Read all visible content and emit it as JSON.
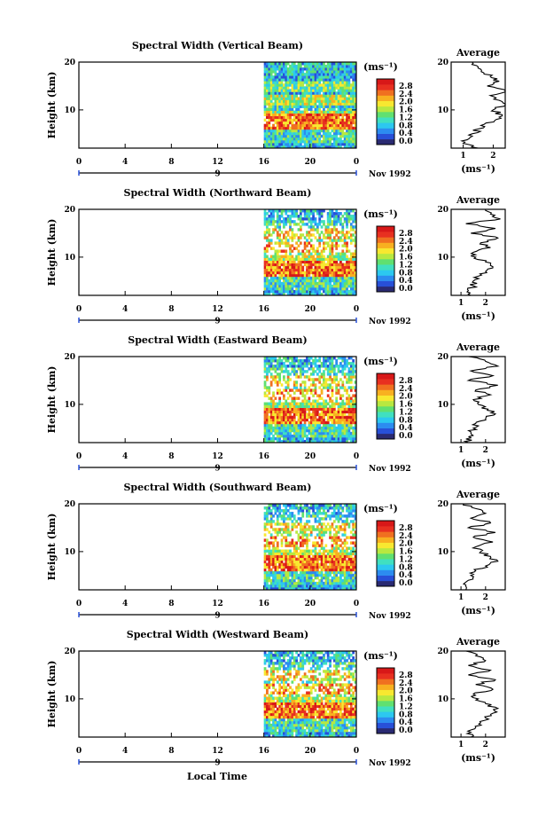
{
  "figure": {
    "x_axis_label": "Local Time",
    "date_label": "Nov 1992",
    "average_title": "Average",
    "unit_label": "(ms⁻¹)",
    "y_axis_label": "Height (km)",
    "colors": {
      "scale": [
        "#2a2a72",
        "#2850d8",
        "#2c8cf0",
        "#2cc8f0",
        "#40e0c0",
        "#60e070",
        "#b8e840",
        "#f8e830",
        "#f8b020",
        "#f07020",
        "#e83020",
        "#d81818"
      ]
    }
  },
  "chart_data": [
    {
      "type": "heatmap",
      "title": "Spectral Width (Vertical Beam)",
      "beam": "vertical",
      "x_ticks": [
        "0",
        "4",
        "8",
        "12",
        "16",
        "20",
        "0"
      ],
      "x_range": [
        0,
        24
      ],
      "day_label": "9",
      "data_start_hour": 16,
      "y_ticks": [
        "20",
        "10"
      ],
      "y_range": [
        2,
        20
      ],
      "colorbar_ticks": [
        "2.8",
        "2.4",
        "2.0",
        "1.6",
        "1.2",
        "0.8",
        "0.4",
        "0.0"
      ],
      "average": {
        "x_ticks": [
          "1",
          "2"
        ],
        "x_range": [
          0.6,
          2.4
        ],
        "height_km": [
          2,
          3,
          4,
          5,
          6,
          7,
          8,
          9,
          10,
          11,
          12,
          13,
          14,
          15,
          16,
          17,
          18,
          19,
          20
        ],
        "width": [
          1.5,
          1.0,
          1.2,
          1.3,
          1.5,
          1.7,
          2.1,
          2.3,
          2.0,
          2.4,
          2.2,
          1.9,
          2.5,
          1.8,
          2.2,
          1.9,
          1.6,
          1.5,
          1.3
        ]
      }
    },
    {
      "type": "heatmap",
      "title": "Spectral Width (Northward Beam)",
      "beam": "northward",
      "x_ticks": [
        "0",
        "4",
        "8",
        "12",
        "16",
        "20",
        "0"
      ],
      "x_range": [
        0,
        24
      ],
      "day_label": "9",
      "data_start_hour": 16,
      "y_ticks": [
        "20",
        "10"
      ],
      "y_range": [
        2,
        20
      ],
      "colorbar_ticks": [
        "2.8",
        "2.4",
        "2.0",
        "1.6",
        "1.2",
        "0.8",
        "0.4",
        "0.0"
      ],
      "average": {
        "x_ticks": [
          "1",
          "2"
        ],
        "x_range": [
          0.6,
          2.8
        ],
        "height_km": [
          2,
          3,
          4,
          5,
          6,
          7,
          8,
          9,
          10,
          11,
          12,
          13,
          14,
          15,
          16,
          17,
          18,
          19,
          20
        ],
        "width": [
          1.4,
          1.3,
          1.5,
          1.5,
          1.7,
          2.0,
          2.3,
          2.0,
          1.6,
          1.5,
          2.2,
          1.8,
          2.5,
          1.4,
          2.4,
          1.2,
          2.6,
          2.2,
          2.0
        ]
      }
    },
    {
      "type": "heatmap",
      "title": "Spectral Width (Eastward Beam)",
      "beam": "eastward",
      "x_ticks": [
        "0",
        "4",
        "8",
        "12",
        "16",
        "20",
        "0"
      ],
      "x_range": [
        0,
        24
      ],
      "day_label": "9",
      "data_start_hour": 16,
      "y_ticks": [
        "20",
        "10"
      ],
      "y_range": [
        2,
        20
      ],
      "colorbar_ticks": [
        "2.8",
        "2.4",
        "2.0",
        "1.6",
        "1.2",
        "0.8",
        "0.4",
        "0.0"
      ],
      "average": {
        "x_ticks": [
          "1",
          "2"
        ],
        "x_range": [
          0.6,
          2.8
        ],
        "height_km": [
          2,
          3,
          4,
          5,
          6,
          7,
          8,
          9,
          10,
          11,
          12,
          13,
          14,
          15,
          16,
          17,
          18,
          19,
          20
        ],
        "width": [
          1.3,
          1.4,
          1.4,
          1.5,
          1.6,
          2.0,
          2.4,
          2.1,
          1.7,
          1.5,
          2.2,
          1.6,
          2.5,
          1.3,
          2.3,
          1.4,
          2.5,
          2.0,
          1.3
        ]
      }
    },
    {
      "type": "heatmap",
      "title": "Spectral Width (Southward Beam)",
      "beam": "southward",
      "x_ticks": [
        "0",
        "4",
        "8",
        "12",
        "16",
        "20",
        "0"
      ],
      "x_range": [
        0,
        24
      ],
      "day_label": "9",
      "data_start_hour": 16,
      "y_ticks": [
        "20",
        "10"
      ],
      "y_range": [
        2,
        20
      ],
      "colorbar_ticks": [
        "2.8",
        "2.4",
        "2.0",
        "1.6",
        "1.2",
        "0.8",
        "0.4",
        "0.0"
      ],
      "average": {
        "x_ticks": [
          "1",
          "2"
        ],
        "x_range": [
          0.6,
          2.8
        ],
        "height_km": [
          2,
          3,
          4,
          5,
          6,
          7,
          8,
          9,
          10,
          11,
          12,
          13,
          14,
          15,
          16,
          17,
          18,
          19,
          20
        ],
        "width": [
          1.2,
          1.2,
          1.3,
          1.4,
          1.6,
          2.0,
          2.5,
          2.2,
          1.8,
          1.6,
          2.3,
          1.5,
          2.4,
          1.3,
          2.2,
          1.4,
          2.0,
          1.6,
          1.1
        ]
      }
    },
    {
      "type": "heatmap",
      "title": "Spectral Width (Westward Beam)",
      "beam": "westward",
      "x_ticks": [
        "0",
        "4",
        "8",
        "12",
        "16",
        "20",
        "0"
      ],
      "x_range": [
        0,
        24
      ],
      "day_label": "9",
      "data_start_hour": 16,
      "y_ticks": [
        "20",
        "10"
      ],
      "y_range": [
        2,
        20
      ],
      "colorbar_ticks": [
        "2.8",
        "2.4",
        "2.0",
        "1.6",
        "1.2",
        "0.8",
        "0.4",
        "0.0"
      ],
      "average": {
        "x_ticks": [
          "1",
          "2"
        ],
        "x_range": [
          0.6,
          2.8
        ],
        "height_km": [
          2,
          3,
          4,
          5,
          6,
          7,
          8,
          9,
          10,
          11,
          12,
          13,
          14,
          15,
          16,
          17,
          18,
          19,
          20
        ],
        "width": [
          1.4,
          1.4,
          1.6,
          1.8,
          2.0,
          2.3,
          2.5,
          2.0,
          1.7,
          1.5,
          2.3,
          1.6,
          2.4,
          1.3,
          2.2,
          1.3,
          2.0,
          1.6,
          1.2
        ]
      }
    }
  ]
}
